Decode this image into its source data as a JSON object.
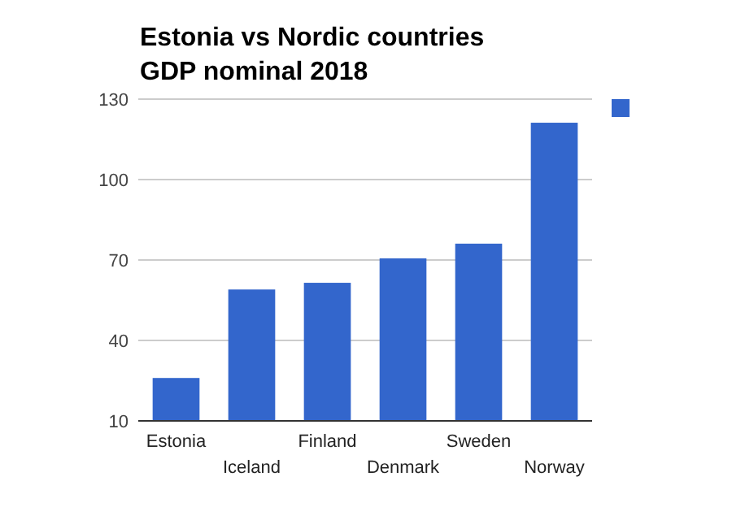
{
  "chart_data": {
    "type": "bar",
    "title": "Estonia vs Nordic countries GDP nominal 2018",
    "categories": [
      "Estonia",
      "Iceland",
      "Finland",
      "Denmark",
      "Sweden",
      "Norway"
    ],
    "series": [
      {
        "color": "#3366cc",
        "values": [
          26,
          59,
          61.5,
          70.6,
          76.1,
          121.2
        ]
      }
    ],
    "ylim": [
      10,
      130
    ],
    "yticks": [
      10,
      40,
      70,
      100,
      130
    ],
    "grid": "y"
  }
}
